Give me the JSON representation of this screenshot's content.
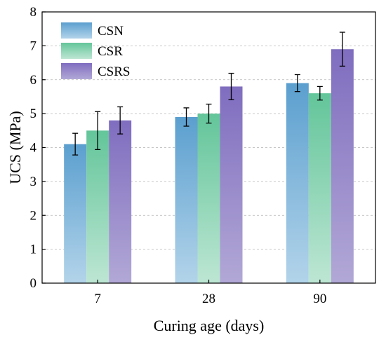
{
  "chart_data": {
    "type": "bar",
    "categories": [
      "7",
      "28",
      "90"
    ],
    "series": [
      {
        "name": "CSN",
        "values": [
          4.1,
          4.9,
          5.9
        ],
        "errors": [
          0.32,
          0.27,
          0.25
        ],
        "color_top": "#5b9fcf",
        "color_bottom": "#b3d4ea"
      },
      {
        "name": "CSR",
        "values": [
          4.5,
          5.0,
          5.6
        ],
        "errors": [
          0.56,
          0.28,
          0.2
        ],
        "color_top": "#63c59a",
        "color_bottom": "#bde6d3"
      },
      {
        "name": "CSRS",
        "values": [
          4.8,
          5.8,
          6.9
        ],
        "errors": [
          0.4,
          0.39,
          0.5
        ],
        "color_top": "#7f6dbf",
        "color_bottom": "#b2a8d6"
      }
    ],
    "xlabel": "Curing age (days)",
    "ylabel": "UCS (MPa)",
    "ylim": [
      0,
      8
    ],
    "yticks": [
      "0",
      "1",
      "2",
      "3",
      "4",
      "5",
      "6",
      "7",
      "8"
    ],
    "grid": "horizontal dashed",
    "legend_position": "top-left"
  }
}
